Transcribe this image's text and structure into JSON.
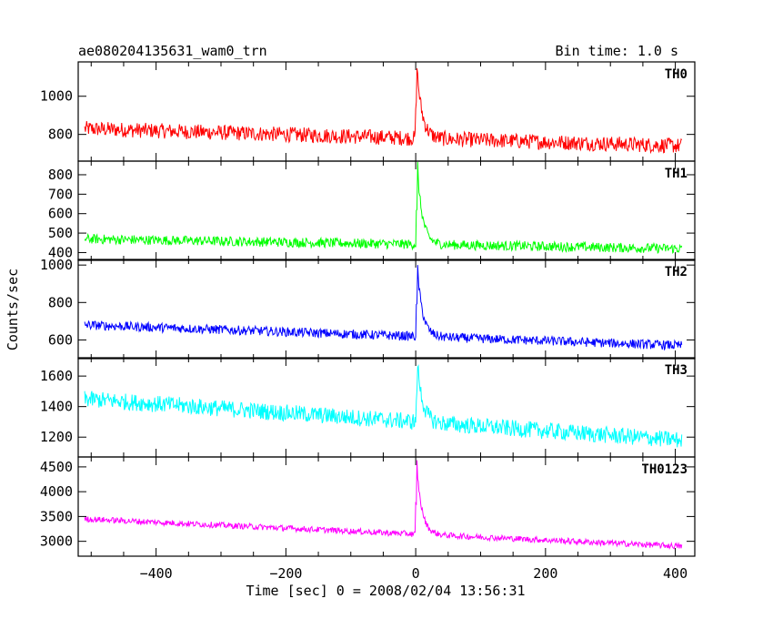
{
  "chart_data": {
    "type": "line",
    "title": "ae080204135631_wam0_trn",
    "bin_time": "Bin time: 1.0 s",
    "xlabel": "Time [sec] 0 = 2008/02/04 13:56:31",
    "ylabel": "Counts/sec",
    "xlim": [
      -520,
      430
    ],
    "x_ticks": [
      -400,
      -200,
      0,
      200,
      400
    ],
    "x_tick_labels": [
      "−400",
      "−200",
      "0",
      "200",
      "400"
    ],
    "grid": false,
    "panels": [
      {
        "name": "TH0",
        "color": "#ff0000",
        "ylim": [
          660,
          1180
        ],
        "y_ticks": [
          800,
          1000
        ],
        "baseline_start": 830,
        "baseline_end": 740,
        "noise": 40,
        "peak_x": 2,
        "peak_y": 1180,
        "decay": 8,
        "points": [
          [
            -510,
            830
          ],
          [
            -400,
            820
          ],
          [
            -200,
            800
          ],
          [
            -10,
            780
          ],
          [
            2,
            1180
          ],
          [
            10,
            900
          ],
          [
            30,
            790
          ],
          [
            200,
            760
          ],
          [
            410,
            740
          ]
        ]
      },
      {
        "name": "TH1",
        "color": "#00ff00",
        "ylim": [
          360,
          870
        ],
        "y_ticks": [
          400,
          500,
          600,
          700,
          800
        ],
        "y_tick_labels": [
          "400",
          "500",
          "600",
          "700",
          "800"
        ],
        "baseline_start": 470,
        "baseline_end": 420,
        "noise": 25,
        "peak_x": 3,
        "peak_y": 850,
        "decay": 8,
        "points": [
          [
            -510,
            470
          ],
          [
            -400,
            465
          ],
          [
            -200,
            450
          ],
          [
            -10,
            440
          ],
          [
            3,
            850
          ],
          [
            12,
            600
          ],
          [
            30,
            450
          ],
          [
            200,
            430
          ],
          [
            410,
            420
          ]
        ]
      },
      {
        "name": "TH2",
        "color": "#0000ff",
        "ylim": [
          500,
          1030
        ],
        "y_ticks": [
          600,
          800,
          1000
        ],
        "baseline_start": 680,
        "baseline_end": 570,
        "noise": 25,
        "peak_x": 3,
        "peak_y": 1000,
        "decay": 8,
        "points": [
          [
            -510,
            680
          ],
          [
            -400,
            660
          ],
          [
            -200,
            630
          ],
          [
            -10,
            600
          ],
          [
            3,
            1000
          ],
          [
            12,
            750
          ],
          [
            30,
            600
          ],
          [
            200,
            580
          ],
          [
            410,
            570
          ]
        ]
      },
      {
        "name": "TH3",
        "color": "#00ffff",
        "ylim": [
          1070,
          1720
        ],
        "y_ticks": [
          1200,
          1400,
          1600
        ],
        "baseline_start": 1450,
        "baseline_end": 1180,
        "noise": 55,
        "peak_x": 3,
        "peak_y": 1700,
        "decay": 8,
        "points": [
          [
            -510,
            1450
          ],
          [
            -400,
            1400
          ],
          [
            -200,
            1330
          ],
          [
            -10,
            1260
          ],
          [
            3,
            1700
          ],
          [
            12,
            1350
          ],
          [
            30,
            1240
          ],
          [
            200,
            1210
          ],
          [
            410,
            1180
          ]
        ]
      },
      {
        "name": "TH0123",
        "color": "#ff00ff",
        "ylim": [
          2700,
          4700
        ],
        "y_ticks": [
          3000,
          3500,
          4000,
          4500
        ],
        "baseline_start": 3450,
        "baseline_end": 2900,
        "noise": 60,
        "peak_x": 2,
        "peak_y": 4600,
        "decay": 8,
        "points": [
          [
            -510,
            3450
          ],
          [
            -400,
            3370
          ],
          [
            -200,
            3200
          ],
          [
            -10,
            3050
          ],
          [
            2,
            4600
          ],
          [
            12,
            3500
          ],
          [
            30,
            3000
          ],
          [
            200,
            2950
          ],
          [
            410,
            2900
          ]
        ]
      }
    ]
  }
}
